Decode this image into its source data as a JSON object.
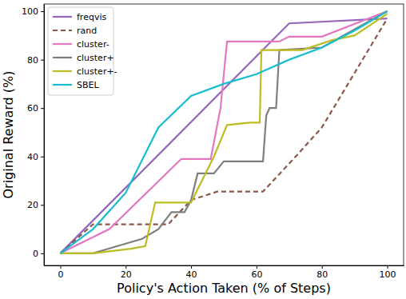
{
  "chart_data": {
    "type": "line",
    "x_label": "Policy's Action Taken (% of Steps)",
    "y_label": "Original Reward (%)",
    "xlim": [
      -5,
      105
    ],
    "ylim": [
      -5,
      103
    ],
    "xticks": [
      0,
      20,
      40,
      60,
      80,
      100
    ],
    "yticks": [
      0,
      20,
      40,
      60,
      80,
      100
    ],
    "grid": false,
    "legend": "upper-left",
    "series": [
      {
        "name": "freqvis",
        "color": "#9467bd",
        "line_style": "solid",
        "x": [
          0,
          70,
          100
        ],
        "values": [
          0,
          95,
          97
        ]
      },
      {
        "name": "rand",
        "color": "#8c564b",
        "line_style": "dashed",
        "x": [
          0,
          10,
          33,
          40,
          48,
          62,
          72,
          80,
          100
        ],
        "values": [
          0,
          12,
          12,
          22,
          25.5,
          25.5,
          40,
          52,
          97
        ]
      },
      {
        "name": "cluster-",
        "color": "#e377c2",
        "line_style": "solid",
        "x": [
          0,
          15,
          37,
          46,
          49,
          51,
          67,
          70,
          80,
          100
        ],
        "values": [
          0,
          10,
          39,
          39,
          60,
          87.5,
          87.5,
          89.5,
          89.5,
          100
        ]
      },
      {
        "name": "cluster+",
        "color": "#7f7f7f",
        "line_style": "solid",
        "x": [
          0,
          10,
          15,
          25,
          30,
          34,
          38,
          40,
          42,
          47,
          50,
          62,
          63,
          64,
          66,
          67,
          80,
          100
        ],
        "values": [
          0,
          0,
          2,
          6,
          10,
          17,
          17,
          22,
          33,
          33,
          38,
          38,
          57,
          60,
          60,
          84,
          85,
          100
        ]
      },
      {
        "name": "cluster+-",
        "color": "#bcbd22",
        "line_style": "solid",
        "x": [
          0,
          10,
          22,
          26,
          29,
          40,
          47,
          51,
          58,
          61,
          61.5,
          74,
          83,
          90,
          100
        ],
        "values": [
          0,
          0,
          2,
          3,
          21,
          21,
          40,
          53,
          54,
          54,
          84,
          84,
          88,
          90,
          99
        ]
      },
      {
        "name": "SBEL",
        "color": "#17becf",
        "line_style": "solid",
        "x": [
          0,
          10,
          20,
          30,
          40,
          50,
          60,
          70,
          80,
          90,
          100
        ],
        "values": [
          0,
          10,
          25,
          52,
          65,
          70,
          74,
          80,
          85,
          92,
          100
        ]
      }
    ]
  }
}
